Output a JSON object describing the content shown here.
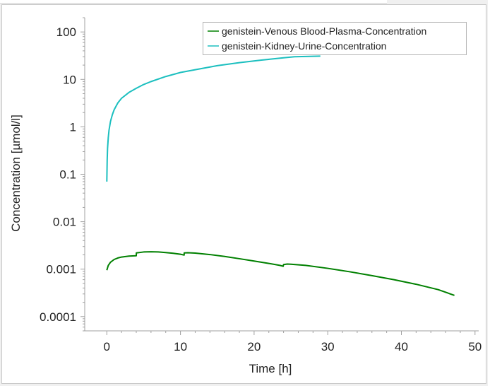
{
  "chart_data": {
    "type": "line",
    "xlabel": "Time [h]",
    "ylabel": "Concentration [µmol/l]",
    "xlim": [
      -3,
      50.5
    ],
    "ylim": [
      5e-05,
      200
    ],
    "yscale": "log",
    "xticks": [
      0,
      10,
      20,
      30,
      40,
      50
    ],
    "xtick_labels": [
      "0",
      "10",
      "20",
      "30",
      "40",
      "50"
    ],
    "yticks": [
      0.0001,
      0.001,
      0.01,
      0.1,
      1,
      10,
      100
    ],
    "ytick_labels": [
      "0.0001",
      "0.001",
      "0.01",
      "0.1",
      "1",
      "10",
      "100"
    ],
    "grid": false,
    "legend_position": "top-right",
    "series": [
      {
        "name": "genistein-Venous Blood-Plasma-Concentration",
        "color": "#008000",
        "x": [
          0,
          0.2,
          0.5,
          1,
          1.5,
          2,
          3,
          4,
          4.01,
          5,
          6,
          7,
          8,
          9,
          10,
          10.5,
          10.51,
          11,
          12,
          14,
          16,
          18,
          20,
          22,
          23.5,
          23.95,
          24,
          24.5,
          25,
          27,
          30,
          33,
          36,
          39,
          42,
          45,
          47.2
        ],
        "y": [
          0.00095,
          0.0012,
          0.0014,
          0.0016,
          0.00172,
          0.0018,
          0.00188,
          0.00192,
          0.0022,
          0.0023,
          0.00232,
          0.0023,
          0.00224,
          0.00216,
          0.00206,
          0.00198,
          0.0022,
          0.00222,
          0.00218,
          0.00203,
          0.00185,
          0.00166,
          0.00148,
          0.00132,
          0.0012,
          0.00115,
          0.00125,
          0.00128,
          0.00127,
          0.0012,
          0.00104,
          0.00088,
          0.00073,
          0.0006,
          0.00048,
          0.00037,
          0.00028
        ]
      },
      {
        "name": "genistein-Kidney-Urine-Concentration",
        "color": "#1cbfbf",
        "x": [
          0,
          0.05,
          0.1,
          0.2,
          0.3,
          0.5,
          0.75,
          1,
          1.5,
          2,
          3,
          4,
          5,
          6,
          8,
          10,
          12,
          15,
          18,
          21,
          24,
          25.5,
          29
        ],
        "y": [
          0.07,
          0.2,
          0.35,
          0.6,
          0.85,
          1.3,
          1.8,
          2.3,
          3.2,
          4.0,
          5.3,
          6.5,
          7.8,
          9.0,
          11.5,
          14,
          16,
          19.5,
          22.5,
          25.5,
          28.5,
          30,
          31
        ]
      }
    ]
  }
}
